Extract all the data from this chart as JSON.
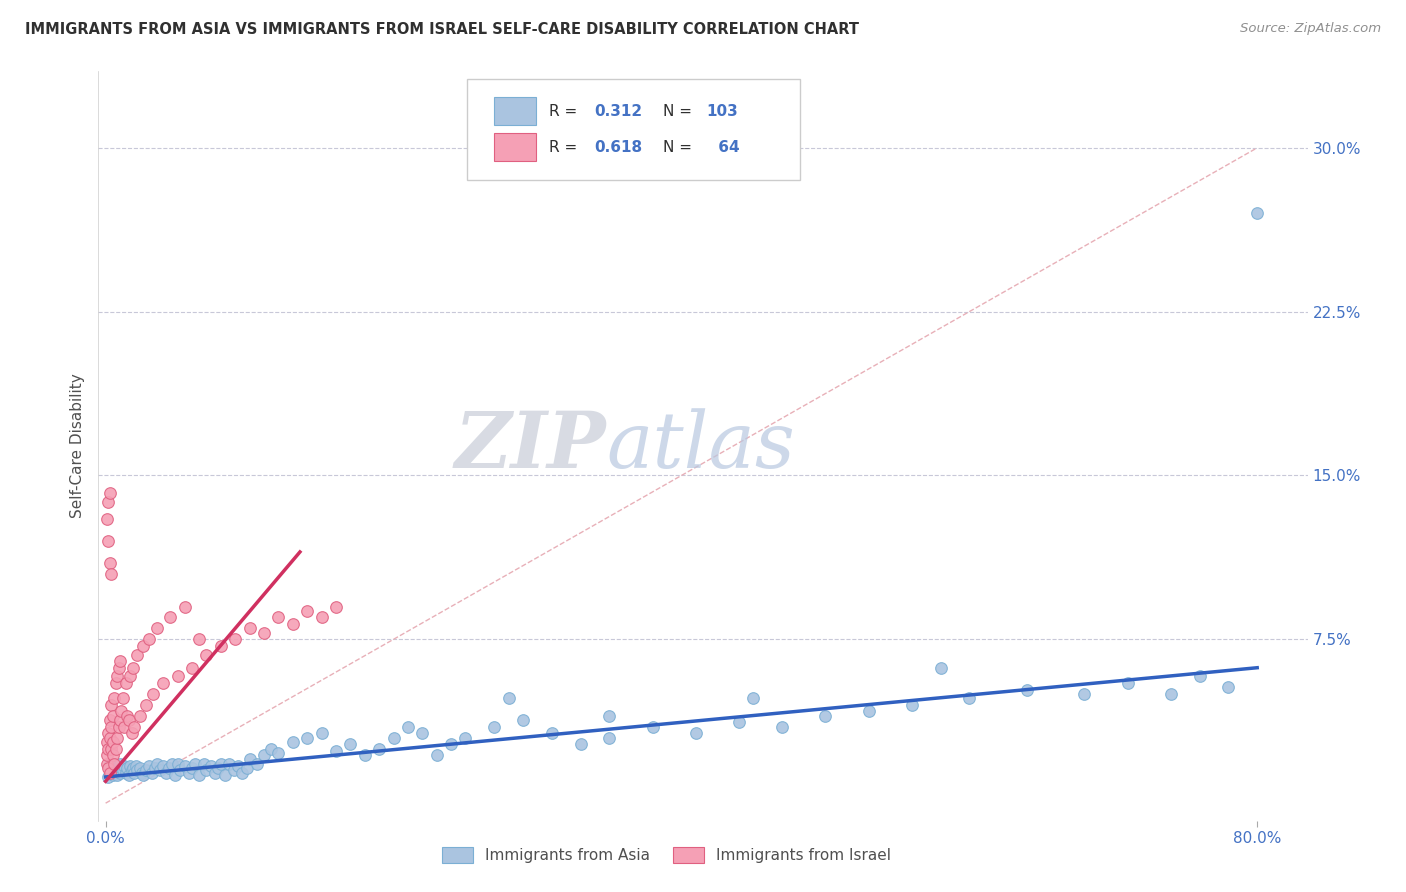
{
  "title": "IMMIGRANTS FROM ASIA VS IMMIGRANTS FROM ISRAEL SELF-CARE DISABILITY CORRELATION CHART",
  "source": "Source: ZipAtlas.com",
  "ylabel": "Self-Care Disability",
  "yticks": [
    0.0,
    0.075,
    0.15,
    0.225,
    0.3
  ],
  "ytick_labels": [
    "",
    "7.5%",
    "15.0%",
    "22.5%",
    "30.0%"
  ],
  "xlim": [
    -0.005,
    0.835
  ],
  "ylim": [
    -0.008,
    0.335
  ],
  "watermark_zip": "ZIP",
  "watermark_atlas": "atlas",
  "legend_r1": "R = 0.312",
  "legend_n1": "N = 103",
  "legend_r2": "R = 0.618",
  "legend_n2": "N =  64",
  "legend_label1": "Immigrants from Asia",
  "legend_label2": "Immigrants from Israel",
  "asia_color": "#aac4e0",
  "asia_edge": "#7bafd4",
  "israel_color": "#f5a0b5",
  "israel_edge": "#e06080",
  "trend_asia_color": "#3060c0",
  "trend_israel_color": "#d03060",
  "diag_color": "#e8b0b8",
  "background_color": "#ffffff",
  "grid_color": "#c8c8d8",
  "title_color": "#303030",
  "axis_label_color": "#505050",
  "tick_label_color": "#4472c4",
  "legend_text_color": "#4472c4",
  "legend_label_color": "#505050",
  "asia_x": [
    0.002,
    0.003,
    0.003,
    0.004,
    0.004,
    0.005,
    0.005,
    0.006,
    0.006,
    0.007,
    0.007,
    0.008,
    0.008,
    0.009,
    0.01,
    0.01,
    0.011,
    0.012,
    0.013,
    0.014,
    0.015,
    0.016,
    0.017,
    0.018,
    0.019,
    0.02,
    0.021,
    0.022,
    0.024,
    0.025,
    0.026,
    0.028,
    0.03,
    0.032,
    0.034,
    0.036,
    0.038,
    0.04,
    0.042,
    0.044,
    0.046,
    0.048,
    0.05,
    0.052,
    0.055,
    0.058,
    0.06,
    0.062,
    0.065,
    0.068,
    0.07,
    0.073,
    0.076,
    0.078,
    0.08,
    0.083,
    0.086,
    0.089,
    0.092,
    0.095,
    0.098,
    0.1,
    0.105,
    0.11,
    0.115,
    0.12,
    0.13,
    0.14,
    0.15,
    0.16,
    0.17,
    0.18,
    0.19,
    0.2,
    0.21,
    0.22,
    0.23,
    0.24,
    0.25,
    0.27,
    0.29,
    0.31,
    0.33,
    0.35,
    0.38,
    0.41,
    0.44,
    0.47,
    0.5,
    0.53,
    0.56,
    0.6,
    0.64,
    0.68,
    0.71,
    0.74,
    0.76,
    0.78,
    0.8,
    0.58,
    0.45,
    0.35,
    0.28
  ],
  "asia_y": [
    0.012,
    0.015,
    0.018,
    0.014,
    0.017,
    0.013,
    0.016,
    0.015,
    0.018,
    0.014,
    0.017,
    0.013,
    0.016,
    0.015,
    0.018,
    0.014,
    0.016,
    0.015,
    0.017,
    0.014,
    0.016,
    0.013,
    0.017,
    0.015,
    0.016,
    0.014,
    0.017,
    0.015,
    0.016,
    0.014,
    0.013,
    0.015,
    0.017,
    0.014,
    0.016,
    0.018,
    0.015,
    0.017,
    0.014,
    0.016,
    0.018,
    0.013,
    0.018,
    0.015,
    0.017,
    0.014,
    0.016,
    0.018,
    0.013,
    0.018,
    0.015,
    0.017,
    0.014,
    0.016,
    0.018,
    0.013,
    0.018,
    0.015,
    0.017,
    0.014,
    0.016,
    0.02,
    0.018,
    0.022,
    0.025,
    0.023,
    0.028,
    0.03,
    0.032,
    0.024,
    0.027,
    0.022,
    0.025,
    0.03,
    0.035,
    0.032,
    0.022,
    0.027,
    0.03,
    0.035,
    0.038,
    0.032,
    0.027,
    0.03,
    0.035,
    0.032,
    0.037,
    0.035,
    0.04,
    0.042,
    0.045,
    0.048,
    0.052,
    0.05,
    0.055,
    0.05,
    0.058,
    0.053,
    0.27,
    0.062,
    0.048,
    0.04,
    0.048
  ],
  "israel_x": [
    0.001,
    0.001,
    0.001,
    0.002,
    0.002,
    0.002,
    0.003,
    0.003,
    0.003,
    0.004,
    0.004,
    0.004,
    0.005,
    0.005,
    0.005,
    0.006,
    0.006,
    0.007,
    0.007,
    0.008,
    0.008,
    0.009,
    0.009,
    0.01,
    0.01,
    0.011,
    0.012,
    0.013,
    0.014,
    0.015,
    0.016,
    0.017,
    0.018,
    0.019,
    0.02,
    0.022,
    0.024,
    0.026,
    0.028,
    0.03,
    0.033,
    0.036,
    0.04,
    0.045,
    0.05,
    0.055,
    0.06,
    0.065,
    0.07,
    0.08,
    0.09,
    0.1,
    0.11,
    0.12,
    0.13,
    0.14,
    0.15,
    0.16,
    0.001,
    0.002,
    0.002,
    0.003,
    0.003,
    0.004
  ],
  "israel_y": [
    0.018,
    0.022,
    0.028,
    0.016,
    0.025,
    0.032,
    0.014,
    0.03,
    0.038,
    0.025,
    0.035,
    0.045,
    0.022,
    0.04,
    0.028,
    0.018,
    0.048,
    0.025,
    0.055,
    0.03,
    0.058,
    0.035,
    0.062,
    0.038,
    0.065,
    0.042,
    0.048,
    0.035,
    0.055,
    0.04,
    0.038,
    0.058,
    0.032,
    0.062,
    0.035,
    0.068,
    0.04,
    0.072,
    0.045,
    0.075,
    0.05,
    0.08,
    0.055,
    0.085,
    0.058,
    0.09,
    0.062,
    0.075,
    0.068,
    0.072,
    0.075,
    0.08,
    0.078,
    0.085,
    0.082,
    0.088,
    0.085,
    0.09,
    0.13,
    0.12,
    0.138,
    0.11,
    0.142,
    0.105
  ],
  "asia_trend_x": [
    0.0,
    0.8
  ],
  "asia_trend_y": [
    0.012,
    0.062
  ],
  "israel_trend_x": [
    0.0,
    0.135
  ],
  "israel_trend_y": [
    0.01,
    0.115
  ]
}
